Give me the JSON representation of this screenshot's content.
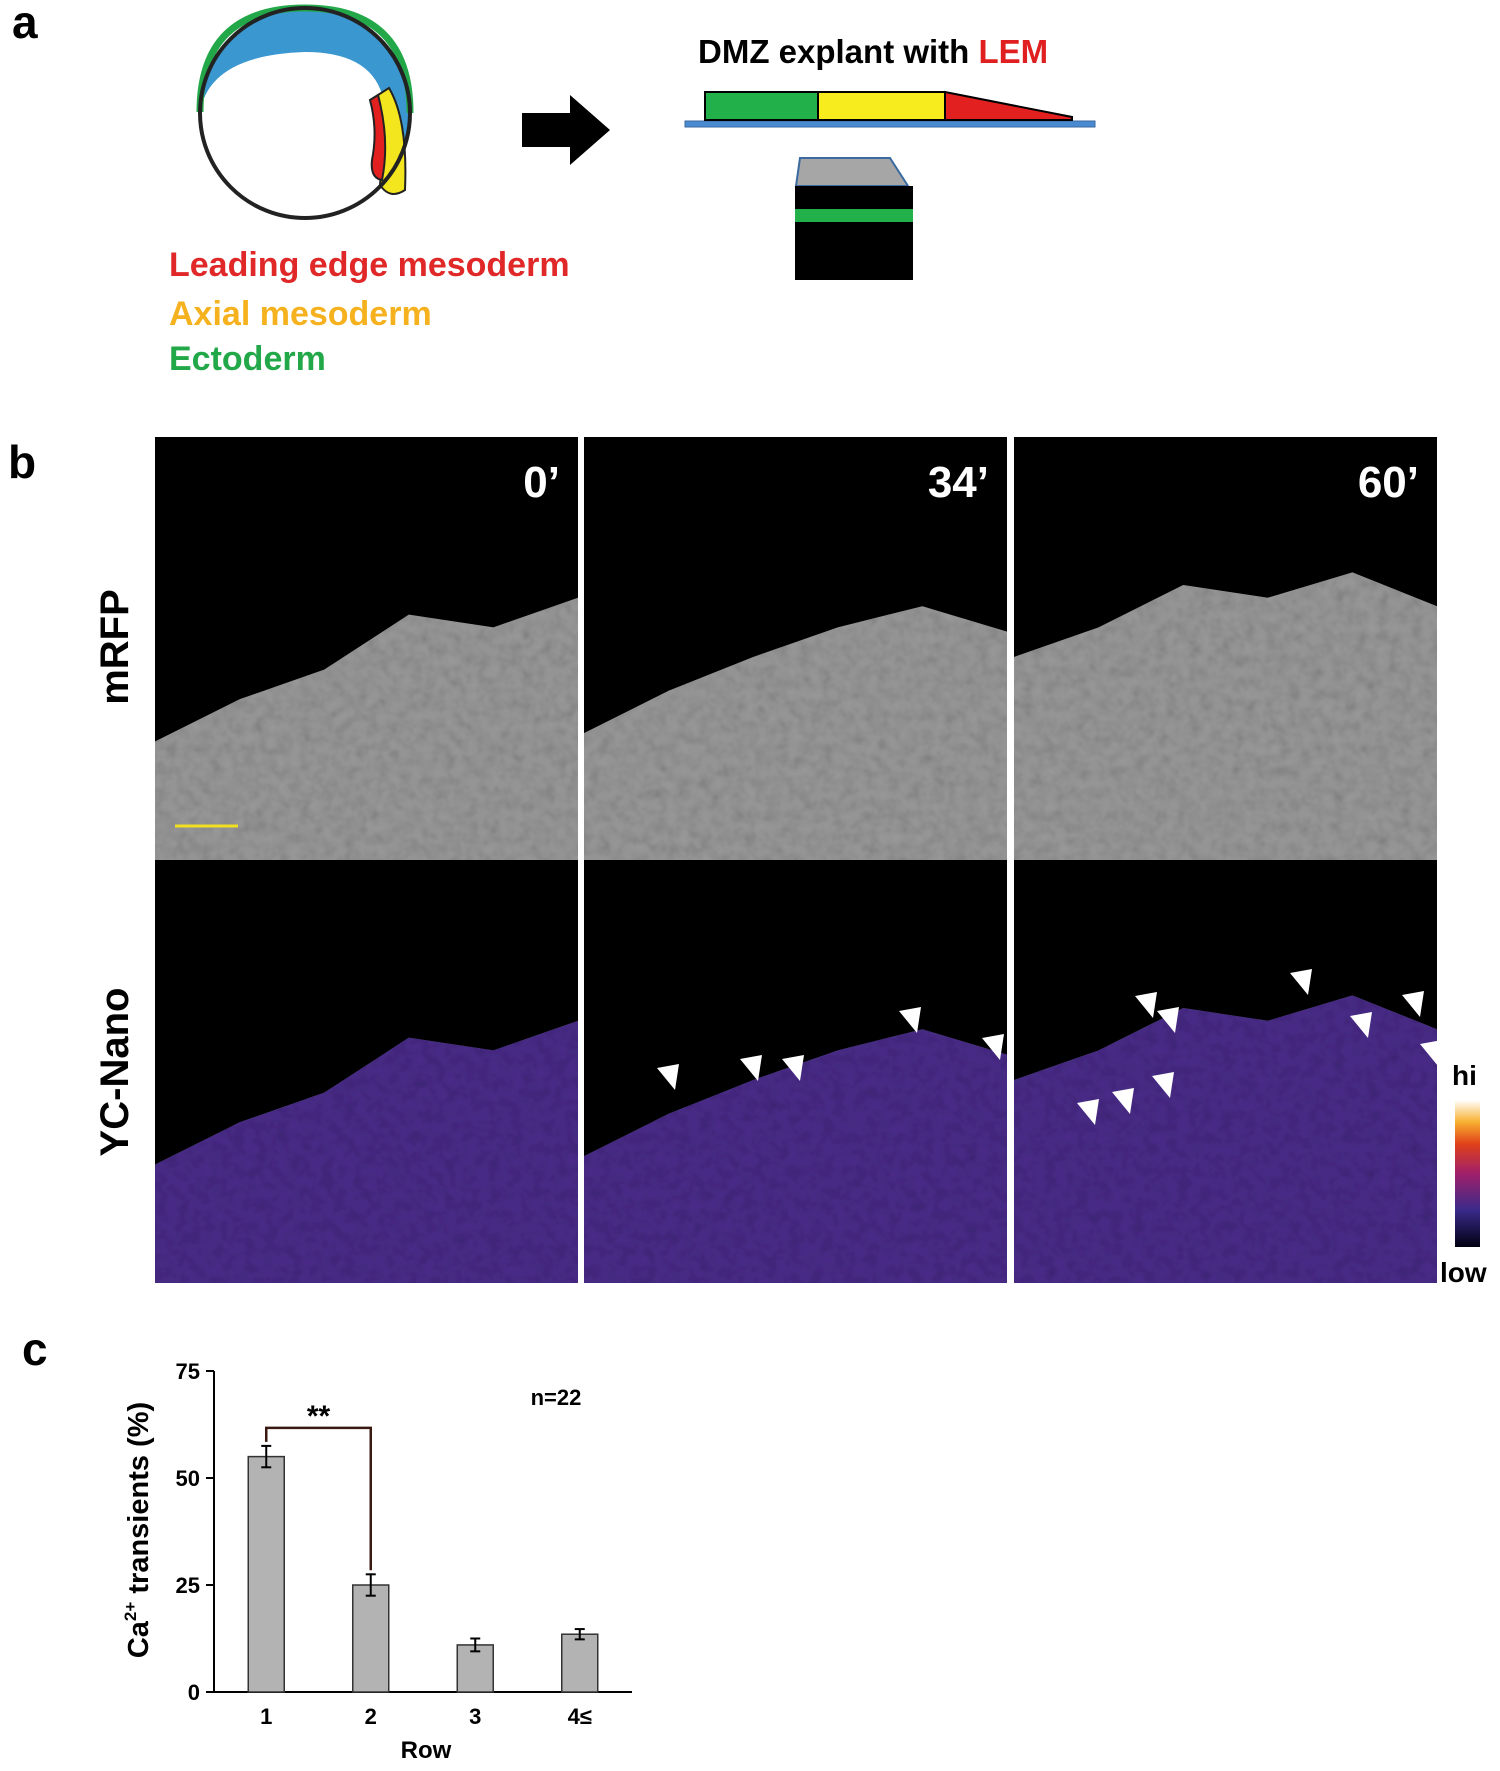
{
  "panel_labels": {
    "a": "a",
    "b": "b",
    "c": "c"
  },
  "panel_a": {
    "explant_title": "DMZ explant with ",
    "explant_highlight": "LEM",
    "legend": [
      "Leading edge mesoderm",
      "Axial mesoderm",
      "Ectoderm"
    ]
  },
  "panel_b": {
    "times": [
      "0’",
      "34’",
      "60’"
    ],
    "rows": [
      "mRFP",
      "YC-Nano"
    ],
    "colorbar": {
      "hi": "hi",
      "low": "low"
    }
  },
  "chart_data": {
    "type": "bar",
    "y_label": {
      "base": "Ca",
      "sup": "2+",
      "rest": " transients (%)"
    },
    "x_label": "Row",
    "categories": [
      "1",
      "2",
      "3",
      "4≤"
    ],
    "series": [
      {
        "color": "#b3b3b3",
        "values": [
          55,
          25,
          11,
          13.5
        ],
        "errors": [
          2.5,
          2.5,
          1.5,
          1.2
        ]
      }
    ],
    "ylim": [
      0,
      75
    ],
    "yticks": [
      0,
      25,
      50,
      75
    ],
    "annotations": {
      "significance": "**",
      "n": "n=22"
    }
  }
}
